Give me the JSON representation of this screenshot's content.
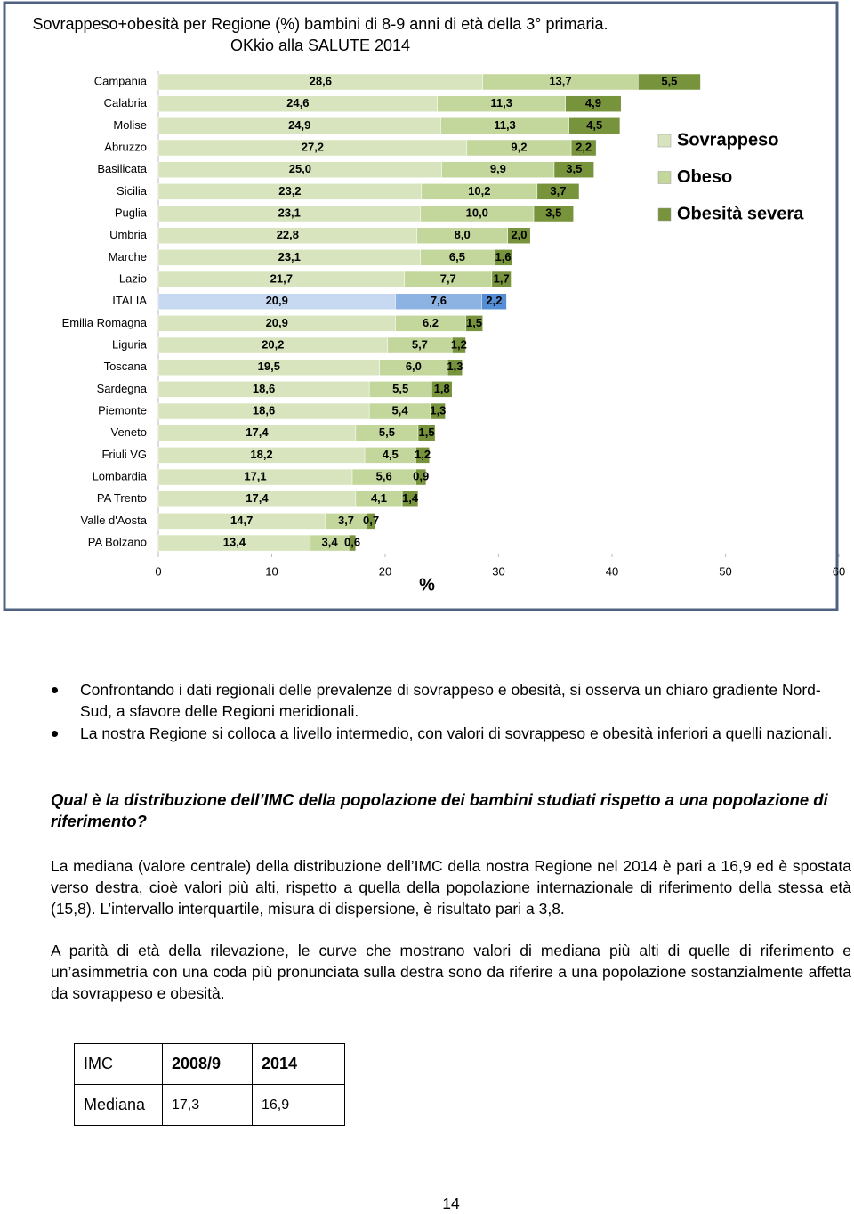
{
  "chart_data": {
    "type": "stacked-barh",
    "title": "Sovrappeso+obesità per Regione (%) bambini di 8-9 anni di età della 3° primaria.",
    "subtitle": "OKkio alla SALUTE 2014",
    "x_label": "%",
    "categories": [
      "Campania",
      "Calabria",
      "Molise",
      "Abruzzo",
      "Basilicata",
      "Sicilia",
      "Puglia",
      "Umbria",
      "Marche",
      "Lazio",
      "ITALIA",
      "Emilia Romagna",
      "Liguria",
      "Toscana",
      "Sardegna",
      "Piemonte",
      "Veneto",
      "Friuli VG",
      "Lombardia",
      "PA Trento",
      "Valle d'Aosta",
      "PA Bolzano"
    ],
    "series": [
      {
        "name": "Sovrappeso",
        "color": "#d7e4bd",
        "highlight_color": "#c6d9f1",
        "values": [
          28.6,
          24.6,
          24.9,
          27.2,
          25.0,
          23.2,
          23.1,
          22.8,
          23.1,
          21.7,
          20.9,
          20.9,
          20.2,
          19.5,
          18.6,
          18.6,
          17.4,
          18.2,
          17.1,
          17.4,
          14.7,
          13.4
        ],
        "value_labels": [
          "28,6",
          "24,6",
          "24,9",
          "27,2",
          "25,0",
          "23,2",
          "23,1",
          "22,8",
          "23,1",
          "21,7",
          "20,9",
          "20,9",
          "20,2",
          "19,5",
          "18,6",
          "18,6",
          "17,4",
          "18,2",
          "17,1",
          "17,4",
          "14,7",
          "13,4"
        ]
      },
      {
        "name": "Obeso",
        "color": "#c3d69b",
        "highlight_color": "#8db3e2",
        "values": [
          13.7,
          11.3,
          11.3,
          9.2,
          9.9,
          10.2,
          10.0,
          8.0,
          6.5,
          7.7,
          7.6,
          6.2,
          5.7,
          6.0,
          5.5,
          5.4,
          5.5,
          4.5,
          5.6,
          4.1,
          3.7,
          3.4
        ],
        "value_labels": [
          "13,7",
          "11,3",
          "11,3",
          "9,2",
          "9,9",
          "10,2",
          "10,0",
          "8,0",
          "6,5",
          "7,7",
          "7,6",
          "6,2",
          "5,7",
          "6,0",
          "5,5",
          "5,4",
          "5,5",
          "4,5",
          "5,6",
          "4,1",
          "3,7",
          "3,4"
        ]
      },
      {
        "name": "Obesità severa",
        "color": "#77933c",
        "highlight_color": "#558ed5",
        "values": [
          5.5,
          4.9,
          4.5,
          2.2,
          3.5,
          3.7,
          3.5,
          2.0,
          1.6,
          1.7,
          2.2,
          1.5,
          1.2,
          1.3,
          1.8,
          1.3,
          1.5,
          1.2,
          0.9,
          1.4,
          0.7,
          0.6
        ],
        "value_labels": [
          "5,5",
          "4,9",
          "4,5",
          "2,2",
          "3,5",
          "3,7",
          "3,5",
          "2,0",
          "1,6",
          "1,7",
          "2,2",
          "1,5",
          "1,2",
          "1,3",
          "1,8",
          "1,3",
          "1,5",
          "1,2",
          "0,9",
          "1,4",
          "0,7",
          "0,6"
        ]
      }
    ],
    "highlight_index": 10,
    "xlim": [
      0,
      60
    ],
    "xticks": [
      0,
      10,
      20,
      30,
      40,
      50,
      60
    ]
  },
  "bullets": [
    "Confrontando i dati regionali delle prevalenze di sovrappeso e obesità, si osserva un chiaro gradiente Nord-Sud, a sfavore delle Regioni meridionali.",
    "La nostra Regione si colloca a livello intermedio, con valori di sovrappeso e obesità inferiori a quelli nazionali."
  ],
  "heading": "Qual è la distribuzione dell’IMC della popolazione dei bambini studiati rispetto a una popolazione di riferimento?",
  "paragraphs": [
    "La mediana (valore centrale) della distribuzione dell’IMC della nostra Regione nel 2014 è pari a 16,9 ed è spostata verso destra, cioè valori più alti, rispetto a quella della popolazione internazionale di riferimento della stessa età (15,8). L’intervallo interquartile, misura di dispersione, è risultato pari a 3,8.",
    "A parità di età della rilevazione, le curve che mostrano valori di mediana più alti di quelle di riferimento e un’asimmetria con una coda più pronunciata sulla destra sono da riferire a una popolazione sostanzialmente affetta da sovrappeso e obesità."
  ],
  "table": {
    "header": [
      "IMC",
      "2008/9",
      "2014"
    ],
    "rows": [
      [
        "Mediana",
        "17,3",
        "16,9"
      ]
    ]
  },
  "page_number": "14"
}
